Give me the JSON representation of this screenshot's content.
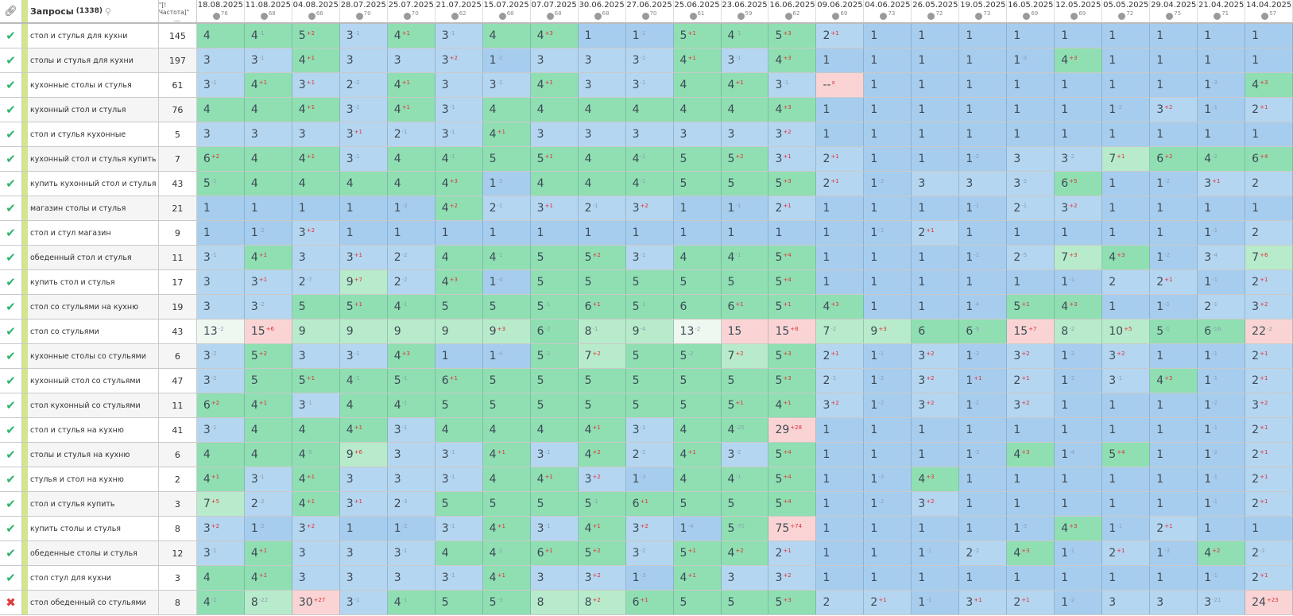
{
  "header": {
    "link_icon": "link-icon",
    "queries_label": "Запросы",
    "queries_count": "(1338)",
    "search_icon": "search-icon",
    "frequency_label": "\"[!Частота]\""
  },
  "dates": [
    {
      "date": "18.08.2025",
      "n": "76"
    },
    {
      "date": "11.08.2025",
      "n": "68"
    },
    {
      "date": "04.08.2025",
      "n": "66"
    },
    {
      "date": "28.07.2025",
      "n": "70"
    },
    {
      "date": "25.07.2025",
      "n": "70"
    },
    {
      "date": "21.07.2025",
      "n": "62"
    },
    {
      "date": "15.07.2025",
      "n": "68"
    },
    {
      "date": "07.07.2025",
      "n": "68"
    },
    {
      "date": "30.06.2025",
      "n": "68"
    },
    {
      "date": "27.06.2025",
      "n": "70"
    },
    {
      "date": "25.06.2025",
      "n": "61"
    },
    {
      "date": "23.06.2025",
      "n": "59"
    },
    {
      "date": "16.06.2025",
      "n": "62"
    },
    {
      "date": "09.06.2025",
      "n": "69"
    },
    {
      "date": "04.06.2025",
      "n": "73"
    },
    {
      "date": "26.05.2025",
      "n": "72"
    },
    {
      "date": "19.05.2025",
      "n": "73"
    },
    {
      "date": "16.05.2025",
      "n": "69"
    },
    {
      "date": "12.05.2025",
      "n": "69"
    },
    {
      "date": "05.05.2025",
      "n": "72"
    },
    {
      "date": "29.04.2025",
      "n": "75"
    },
    {
      "date": "21.04.2025",
      "n": "71"
    },
    {
      "date": "14.04.2025",
      "n": "57"
    }
  ],
  "colors": {
    "pos1": "#a7cdee",
    "pos2_3": "#b5d6f0",
    "pos4_6": "#8fdfb2",
    "pos7_10": "#b8ebcb",
    "pos11_14": "#eef8f1",
    "pos15plus": "#fad4d4",
    "check": "#2fb46e",
    "cross": "#e23a3a",
    "delta_worse": "#e0303a",
    "delta_better": "#8aa0b0"
  },
  "rows": [
    {
      "status": "ok",
      "q": "стол и стулья для кухни",
      "f": "145",
      "p": [
        "4",
        "4-1",
        "5+2",
        "3-1",
        "4+1",
        "3-1",
        "4",
        "4+3",
        "1",
        "1-1",
        "5+1",
        "4-1",
        "5+3",
        "2+1",
        "1",
        "1",
        "1",
        "1",
        "1",
        "1",
        "1",
        "1",
        "1"
      ]
    },
    {
      "status": "ok",
      "q": "столы и стулья для кухни",
      "f": "197",
      "p": [
        "3",
        "3-1",
        "4+1",
        "3",
        "3",
        "3+2",
        "1-2",
        "3",
        "3",
        "3-1",
        "4+1",
        "3-1",
        "4+3",
        "1",
        "1",
        "1",
        "1",
        "1-3",
        "4+3",
        "1",
        "1",
        "1",
        "1"
      ]
    },
    {
      "status": "ok",
      "q": "кухонные столы и стулья",
      "f": "61",
      "p": [
        "3-1",
        "4+1",
        "3+1",
        "2-2",
        "4+1",
        "3",
        "3-1",
        "4+1",
        "3",
        "3-1",
        "4",
        "4+1",
        "3-1",
        "--+x",
        "1",
        "1",
        "1",
        "1",
        "1",
        "1",
        "1",
        "1-3",
        "4+3"
      ]
    },
    {
      "status": "ok",
      "q": "кухонный стол и стулья",
      "f": "76",
      "p": [
        "4",
        "4",
        "4+1",
        "3-1",
        "4+1",
        "3-1",
        "4",
        "4",
        "4",
        "4",
        "4",
        "4",
        "4+3",
        "1",
        "1",
        "1",
        "1",
        "1",
        "1",
        "1-2",
        "3+2",
        "1-1",
        "2+1"
      ]
    },
    {
      "status": "ok",
      "q": "стол и стулья кухонные",
      "f": "5",
      "p": [
        "3",
        "3",
        "3",
        "3+1",
        "2-1",
        "3-1",
        "4+1",
        "3",
        "3",
        "3",
        "3",
        "3",
        "3+2",
        "1",
        "1",
        "1",
        "1",
        "1",
        "1",
        "1",
        "1",
        "1",
        "1"
      ]
    },
    {
      "status": "ok",
      "q": "кухонный стол и стулья купить",
      "f": "7",
      "p": [
        "6+2",
        "4",
        "4+1",
        "3-1",
        "4",
        "4-1",
        "5",
        "5+1",
        "4",
        "4-1",
        "5",
        "5+2",
        "3+1",
        "2+1",
        "1",
        "1",
        "1-2",
        "3",
        "3-2",
        "7+1",
        "6+2",
        "4-2",
        "6+4"
      ]
    },
    {
      "status": "ok",
      "q": "купить кухонный стол и стулья",
      "f": "43",
      "p": [
        "5-1",
        "4",
        "4",
        "4",
        "4",
        "4+3",
        "1-2",
        "4",
        "4",
        "4-1",
        "5",
        "5",
        "5+3",
        "2+1",
        "1-2",
        "3",
        "3",
        "3-2",
        "6+5",
        "1",
        "1-2",
        "3+1",
        "2"
      ]
    },
    {
      "status": "ok",
      "q": "магазин столы и стулья",
      "f": "21",
      "p": [
        "1",
        "1",
        "1",
        "1",
        "1-3",
        "4+2",
        "2-1",
        "3+1",
        "2-1",
        "3+2",
        "1",
        "1-1",
        "2+1",
        "1",
        "1",
        "1",
        "1-1",
        "2-1",
        "3+2",
        "1",
        "1",
        "1",
        "1"
      ]
    },
    {
      "status": "ok",
      "q": "стол и стул магазин",
      "f": "9",
      "p": [
        "1",
        "1-2",
        "3+2",
        "1",
        "1",
        "1",
        "1",
        "1",
        "1",
        "1",
        "1",
        "1",
        "1",
        "1",
        "1-1",
        "2+1",
        "1",
        "1",
        "1",
        "1",
        "1",
        "1-1",
        "2"
      ]
    },
    {
      "status": "ok",
      "q": "обеденный стол и стулья",
      "f": "11",
      "p": [
        "3-1",
        "4+1",
        "3",
        "3+1",
        "2-2",
        "4",
        "4-1",
        "5",
        "5+2",
        "3-1",
        "4",
        "4-1",
        "5+4",
        "1",
        "1",
        "1",
        "1-1",
        "2-5",
        "7+3",
        "4+3",
        "1-2",
        "3-4",
        "7+6"
      ]
    },
    {
      "status": "ok",
      "q": "купить стол и стулья",
      "f": "17",
      "p": [
        "3",
        "3+1",
        "2-7",
        "9+7",
        "2-2",
        "4+3",
        "1-4",
        "5",
        "5",
        "5",
        "5",
        "5",
        "5+4",
        "1",
        "1",
        "1",
        "1",
        "1",
        "1-1",
        "2",
        "2+1",
        "1-1",
        "2+1"
      ]
    },
    {
      "status": "ok",
      "q": "стол со стульями на кухню",
      "f": "19",
      "p": [
        "3",
        "3-2",
        "5",
        "5+1",
        "4-1",
        "5",
        "5",
        "5-1",
        "6+1",
        "5-1",
        "6",
        "6+1",
        "5+1",
        "4+3",
        "1",
        "1",
        "1-4",
        "5+1",
        "4+3",
        "1",
        "1-1",
        "2-1",
        "3+2"
      ]
    },
    {
      "status": "ok",
      "q": "стол со стульями",
      "f": "43",
      "p": [
        "13-2",
        "15+6",
        "9",
        "9",
        "9",
        "9",
        "9+3",
        "6-2",
        "8-1",
        "9-4",
        "13-2",
        "15",
        "15+8",
        "7-2",
        "9+3",
        "6",
        "6-9",
        "15+7",
        "8-2",
        "10+5",
        "5-1",
        "6-16",
        "22-2"
      ]
    },
    {
      "status": "ok",
      "q": "кухонные столы со стульями",
      "f": "6",
      "p": [
        "3-2",
        "5+2",
        "3",
        "3-1",
        "4+3",
        "1",
        "1-4",
        "5-2",
        "7+2",
        "5",
        "5-2",
        "7+2",
        "5+3",
        "2+1",
        "1-1",
        "3+2",
        "1-2",
        "3+2",
        "1-2",
        "3+2",
        "1",
        "1-1",
        "2+1"
      ]
    },
    {
      "status": "ok",
      "q": "кухонный стол со стульями",
      "f": "47",
      "p": [
        "3-2",
        "5",
        "5+1",
        "4-1",
        "5-1",
        "6+1",
        "5",
        "5",
        "5",
        "5",
        "5",
        "5",
        "5+3",
        "2-1",
        "1-2",
        "3+2",
        "1+1",
        "2+1",
        "1-2",
        "3-1",
        "4+3",
        "1-1",
        "2+1"
      ]
    },
    {
      "status": "ok",
      "q": "стол кухонный со стульями",
      "f": "11",
      "p": [
        "6+2",
        "4+1",
        "3-1",
        "4",
        "4-1",
        "5",
        "5",
        "5",
        "5",
        "5",
        "5",
        "5+1",
        "4+1",
        "3+2",
        "1-2",
        "3+2",
        "1-2",
        "3+2",
        "1",
        "1",
        "1",
        "1-2",
        "3+2"
      ]
    },
    {
      "status": "ok",
      "q": "стол и стулья на кухню",
      "f": "41",
      "p": [
        "3-1",
        "4",
        "4",
        "4+1",
        "3-1",
        "4",
        "4",
        "4",
        "4+1",
        "3-1",
        "4",
        "4-25",
        "29+28",
        "1",
        "1",
        "1",
        "1",
        "1",
        "1",
        "1",
        "1",
        "1-1",
        "2+1"
      ]
    },
    {
      "status": "ok",
      "q": "столы и стулья на кухню",
      "f": "6",
      "p": [
        "4",
        "4",
        "4-5",
        "9+6",
        "3",
        "3-1",
        "4+1",
        "3-1",
        "4+2",
        "2-2",
        "4+1",
        "3-2",
        "5+4",
        "1",
        "1",
        "1",
        "1-3",
        "4+3",
        "1-4",
        "5+4",
        "1",
        "1-2",
        "2+1"
      ]
    },
    {
      "status": "ok",
      "q": "стулья и стол на кухню",
      "f": "2",
      "p": [
        "4+1",
        "3-1",
        "4+1",
        "3",
        "3",
        "3-1",
        "4",
        "4+1",
        "3+2",
        "1-3",
        "4",
        "4-1",
        "5+4",
        "1",
        "1-3",
        "4+3",
        "1",
        "1",
        "1",
        "1",
        "1",
        "1-1",
        "2+1"
      ]
    },
    {
      "status": "ok",
      "q": "стол и стулья купить",
      "f": "3",
      "p": [
        "7+5",
        "2-2",
        "4+1",
        "3+1",
        "2-3",
        "5",
        "5",
        "5",
        "5-1",
        "6+1",
        "5",
        "5",
        "5+4",
        "1",
        "1-2",
        "3+2",
        "1",
        "1",
        "1",
        "1",
        "1",
        "1-1",
        "2+1"
      ]
    },
    {
      "status": "ok",
      "q": "купить столы и стулья",
      "f": "8",
      "p": [
        "3+2",
        "1-2",
        "3+2",
        "1",
        "1-2",
        "3-1",
        "4+1",
        "3-1",
        "4+1",
        "3+2",
        "1-4",
        "5-70",
        "75+74",
        "1",
        "1",
        "1",
        "1",
        "1-3",
        "4+3",
        "1-1",
        "2+1",
        "1",
        "1"
      ]
    },
    {
      "status": "ok",
      "q": "обеденные столы и стулья",
      "f": "12",
      "p": [
        "3-1",
        "4+1",
        "3",
        "3",
        "3-1",
        "4",
        "4-2",
        "6+1",
        "5+2",
        "3-2",
        "5+1",
        "4+2",
        "2+1",
        "1",
        "1",
        "1-1",
        "2-2",
        "4+3",
        "1-1",
        "2+1",
        "1-3",
        "4+2",
        "2-1"
      ]
    },
    {
      "status": "ok",
      "q": "стол стул для кухни",
      "f": "3",
      "p": [
        "4",
        "4+1",
        "3",
        "3",
        "3",
        "3-1",
        "4+1",
        "3",
        "3+2",
        "1-3",
        "4+1",
        "3",
        "3+2",
        "1",
        "1",
        "1",
        "1",
        "1",
        "1",
        "1",
        "1",
        "1-1",
        "2+1"
      ]
    },
    {
      "status": "bad",
      "q": "стол обеденный со стульями",
      "f": "8",
      "p": [
        "4-2",
        "8-22",
        "30+27",
        "3-1",
        "4-1",
        "5",
        "5-3",
        "8",
        "8+2",
        "6+1",
        "5",
        "5",
        "5+3",
        "2",
        "2+1",
        "1-1",
        "3+1",
        "2+1",
        "1-2",
        "3",
        "3",
        "3-21",
        "24+23"
      ]
    }
  ]
}
